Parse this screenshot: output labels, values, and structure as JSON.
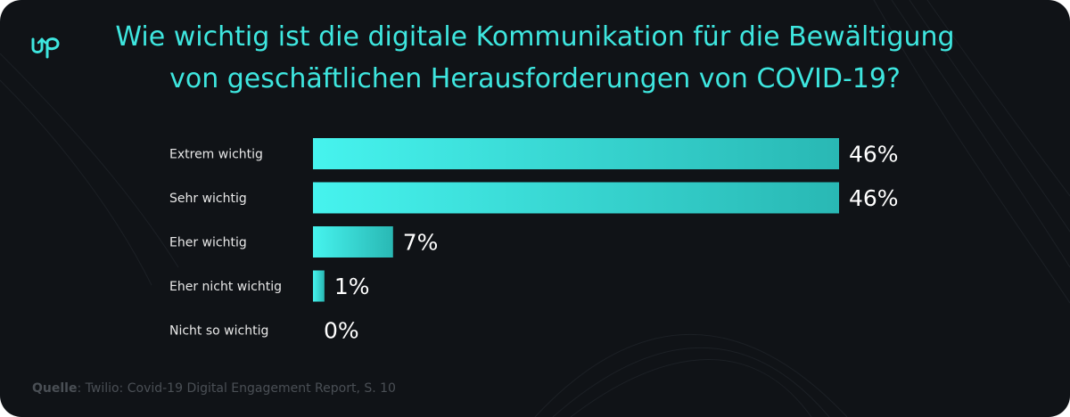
{
  "brand": {
    "logo": "up-arrow-logo",
    "logo_text": "Up"
  },
  "title": "Wie wichtig ist die digitale Kommunikation für die Bewältigung von geschäftlichen Herausforderungen von COVID-19?",
  "colors": {
    "background": "#101317",
    "accent": "#3ee6df",
    "bar_start": "#46f3ee",
    "bar_end": "#29b8b4",
    "label_text": "#e8e8e8",
    "value_text": "#ffffff",
    "source_text": "#4a4f55"
  },
  "source": {
    "label": "Quelle",
    "text": "Twilio: Covid-19 Digital Engagement Report, S. 10"
  },
  "chart_data": {
    "type": "bar",
    "orientation": "horizontal",
    "title": "Wie wichtig ist die digitale Kommunikation für die Bewältigung von geschäftlichen Herausforderungen von COVID-19?",
    "categories": [
      "Extrem wichtig",
      "Sehr wichtig",
      "Eher wichtig",
      "Eher nicht wichtig",
      "Nicht so wichtig"
    ],
    "values": [
      46,
      46,
      7,
      1,
      0
    ],
    "value_labels": [
      "46%",
      "46%",
      "7%",
      "1%",
      "0%"
    ],
    "unit": "%",
    "xlim": [
      0,
      46
    ],
    "grid": false,
    "legend": "none"
  }
}
